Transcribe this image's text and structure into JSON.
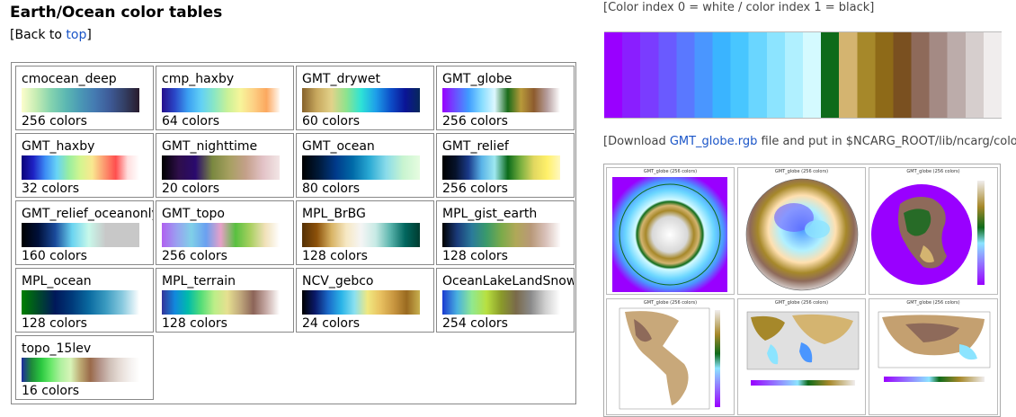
{
  "heading": "Earth/Ocean color tables",
  "back": {
    "prefix": "[Back to ",
    "link": "top",
    "suffix": "]"
  },
  "tables": [
    {
      "name": "cmocean_deep",
      "colors": "256 colors",
      "gradient": [
        "#fdfecc",
        "#c5ecb3",
        "#84d3af",
        "#5cb8b2",
        "#4a98b5",
        "#4479b1",
        "#3e5a97",
        "#333f64",
        "#281a2c"
      ]
    },
    {
      "name": "cmp_haxby",
      "colors": "64 colors",
      "gradient": [
        "#250f8c",
        "#2a48c8",
        "#3ba0f2",
        "#62d0f6",
        "#8ae7c4",
        "#c8f198",
        "#f7f59a",
        "#fdd084",
        "#fca85f",
        "#fff8f0"
      ]
    },
    {
      "name": "GMT_drywet",
      "colors": "60 colors",
      "gradient": [
        "#86612a",
        "#c8a85e",
        "#e2d28a",
        "#8ee38d",
        "#2ee3d6",
        "#1e9fe9",
        "#0d4fc9",
        "#0a1496",
        "#08285a"
      ]
    },
    {
      "name": "GMT_globe",
      "colors": "256 colors",
      "gradient": [
        "#9900ff",
        "#6a50ff",
        "#3f9cff",
        "#86dcff",
        "#ddf8ff",
        "#1a6b1a",
        "#b89a3a",
        "#8d5b2e",
        "#b69e9e",
        "#ffffff"
      ]
    },
    {
      "name": "GMT_haxby",
      "colors": "32 colors",
      "gradient": [
        "#0a0079",
        "#1e22c4",
        "#3c8cf5",
        "#68d4f6",
        "#98eea0",
        "#d4f590",
        "#f9e890",
        "#fc9a70",
        "#ff4e4e",
        "#ffdede",
        "#ffffff"
      ]
    },
    {
      "name": "GMT_nighttime",
      "colors": "20 colors",
      "gradient": [
        "#000000",
        "#2e0e4a",
        "#2a0a6e",
        "#7a8840",
        "#a6a060",
        "#c4a08a",
        "#e2c2c6",
        "#f2e6e6"
      ]
    },
    {
      "name": "GMT_ocean",
      "colors": "80 colors",
      "gradient": [
        "#000000",
        "#001a3a",
        "#003a8a",
        "#006aa8",
        "#2aaad4",
        "#8adcea",
        "#c8f4d0",
        "#e6fce0"
      ]
    },
    {
      "name": "GMT_relief",
      "colors": "256 colors",
      "gradient": [
        "#000000",
        "#06122a",
        "#1a3a8a",
        "#5ab4e8",
        "#9ee8f0",
        "#0a6b1a",
        "#7ab040",
        "#e2d860",
        "#fff06a",
        "#fff8c0"
      ]
    },
    {
      "name": "GMT_relief_oceanonly",
      "colors": "160 colors",
      "gradient": [
        "#000000",
        "#00103a",
        "#1a4a9a",
        "#6ad4f0",
        "#c8f8ea",
        "#c8c8c8",
        "#c8c8c8",
        "#c8c8c8"
      ]
    },
    {
      "name": "GMT_topo",
      "colors": "256 colors",
      "gradient": [
        "#b060f0",
        "#9aa0f0",
        "#80d0e8",
        "#6aa0f0",
        "#e8a0c8",
        "#58c040",
        "#a8d060",
        "#f0e0b8",
        "#ffffff"
      ]
    },
    {
      "name": "MPL_BrBG",
      "colors": "128 colors",
      "gradient": [
        "#543005",
        "#8c510a",
        "#d8b365",
        "#f6e8c3",
        "#f5f5f5",
        "#c7eae5",
        "#5ab4ac",
        "#01665e",
        "#003c30"
      ]
    },
    {
      "name": "MPL_gist_earth",
      "colors": "128 colors",
      "gradient": [
        "#000000",
        "#1a3a7a",
        "#2a7a9a",
        "#3a9a6a",
        "#7aaa4a",
        "#b0a858",
        "#b89878",
        "#d8c0b8",
        "#fdfbfb"
      ]
    },
    {
      "name": "MPL_ocean",
      "colors": "128 colors",
      "gradient": [
        "#008000",
        "#004a2a",
        "#00185a",
        "#003a7a",
        "#0a6aa0",
        "#3a9ac0",
        "#8acadf",
        "#ffffff"
      ]
    },
    {
      "name": "MPL_terrain",
      "colors": "128 colors",
      "gradient": [
        "#333399",
        "#1188dd",
        "#00bbaa",
        "#55dd77",
        "#bbee88",
        "#e6e090",
        "#c0a87c",
        "#8c6458",
        "#c8aca8",
        "#ffffff"
      ]
    },
    {
      "name": "NCV_gebco",
      "colors": "24 colors",
      "gradient": [
        "#000000",
        "#0a1a6a",
        "#1a6ac8",
        "#2ab4e8",
        "#8ae0f0",
        "#f0e880",
        "#e8c060",
        "#c89640",
        "#9a6a20",
        "#c8b050"
      ]
    },
    {
      "name": "OceanLakeLandSnow",
      "colors": "254 colors",
      "gradient": [
        "#1a3ad0",
        "#48b0e0",
        "#90e890",
        "#b8e040",
        "#8a9a2a",
        "#7a6a4a",
        "#8a8a8a",
        "#d0d0d0",
        "#ffffff"
      ]
    },
    {
      "name": "topo_15lev",
      "colors": "16 colors",
      "gradient": [
        "#1e2aa0",
        "#1e8a3a",
        "#2ac840",
        "#6ae86a",
        "#b0f0a0",
        "#d8f4b8",
        "#bca872",
        "#9a6a4a",
        "#b4948a",
        "#d0c0b8",
        "#e6dcd6",
        "#f4f0ee",
        "#ffffff"
      ]
    }
  ],
  "color_index_note": "[Color index 0 = white / color index 1 = black]",
  "big_colorbar": {
    "name": "GMT_globe",
    "colors": [
      "#9900ff",
      "#8a1eff",
      "#7a3cff",
      "#6a5aff",
      "#5a78ff",
      "#4a96ff",
      "#3ab4ff",
      "#48c6ff",
      "#6ad6ff",
      "#8ce4ff",
      "#b0f0ff",
      "#d4faff",
      "#0e6b1a",
      "#d4b470",
      "#a6882a",
      "#8e6a18",
      "#7a5020",
      "#8e6a5a",
      "#a48a84",
      "#bcacaa",
      "#d6cecd",
      "#f0eded"
    ]
  },
  "download": {
    "prefix": "[Download ",
    "link": "GMT_globe.rgb",
    "suffix": " file and put in $NCARG_ROOT/lib/ncarg/colormaps,"
  },
  "example_captions": [
    "GMT_globe (256 colors)",
    "GMT_globe (256 colors)",
    "GMT_globe (256 colors)",
    "GMT_globe (256 colors)",
    "GMT_globe (256 colors)",
    "GMT_globe (256 colors)"
  ]
}
